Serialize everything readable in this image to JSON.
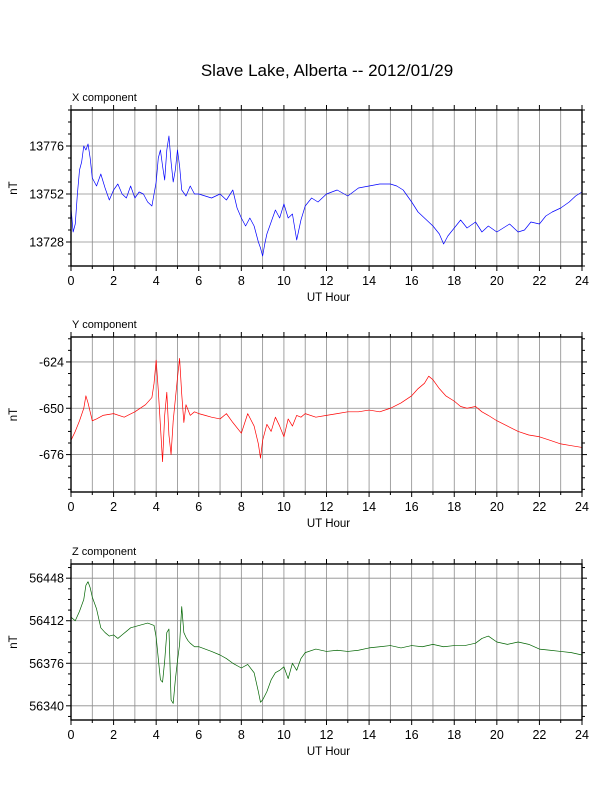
{
  "page": {
    "title": "Slave Lake, Alberta -- 2012/01/29"
  },
  "chart_data": [
    {
      "type": "line",
      "panel_label": "X component",
      "xlabel": "UT Hour",
      "ylabel": "nT",
      "xlim": [
        0,
        24
      ],
      "ylim": [
        13716,
        13794
      ],
      "xticks": [
        0,
        2,
        4,
        6,
        8,
        10,
        12,
        14,
        16,
        18,
        20,
        22,
        24
      ],
      "yticks": [
        13728,
        13752,
        13776
      ],
      "grid": true,
      "color": "#0000ff",
      "series": [
        {
          "x": [
            0,
            0.1,
            0.2,
            0.3,
            0.4,
            0.5,
            0.6,
            0.7,
            0.8,
            0.9,
            1.0,
            1.2,
            1.4,
            1.6,
            1.8,
            2.0,
            2.2,
            2.4,
            2.6,
            2.8,
            3.0,
            3.2,
            3.4,
            3.6,
            3.8,
            4.0,
            4.1,
            4.2,
            4.3,
            4.4,
            4.5,
            4.6,
            4.7,
            4.8,
            4.9,
            5.0,
            5.1,
            5.2,
            5.4,
            5.6,
            5.8,
            6.0,
            6.3,
            6.6,
            7.0,
            7.3,
            7.6,
            7.8,
            8.0,
            8.2,
            8.4,
            8.6,
            8.8,
            8.9,
            9.0,
            9.1,
            9.2,
            9.4,
            9.6,
            9.8,
            10.0,
            10.2,
            10.4,
            10.6,
            10.8,
            11.0,
            11.3,
            11.6,
            12.0,
            12.5,
            13.0,
            13.5,
            14.0,
            14.5,
            15.0,
            15.3,
            15.6,
            16.0,
            16.3,
            16.6,
            17.0,
            17.3,
            17.5,
            17.7,
            18.0,
            18.3,
            18.6,
            19.0,
            19.3,
            19.6,
            20.0,
            20.3,
            20.6,
            21.0,
            21.3,
            21.6,
            22.0,
            22.3,
            22.6,
            23.0,
            23.4,
            23.7,
            24.0
          ],
          "y": [
            13745,
            13733,
            13737,
            13752,
            13764,
            13768,
            13776,
            13774,
            13777,
            13770,
            13760,
            13756,
            13762,
            13755,
            13749,
            13754,
            13757,
            13752,
            13750,
            13756,
            13750,
            13753,
            13752,
            13748,
            13746,
            13758,
            13770,
            13774,
            13766,
            13759,
            13774,
            13781,
            13768,
            13758,
            13764,
            13774,
            13766,
            13754,
            13751,
            13756,
            13752,
            13752,
            13751,
            13750,
            13752,
            13749,
            13754,
            13745,
            13740,
            13736,
            13740,
            13736,
            13728,
            13725,
            13721,
            13727,
            13732,
            13738,
            13744,
            13740,
            13747,
            13740,
            13742,
            13729,
            13739,
            13746,
            13750,
            13748,
            13752,
            13754,
            13751,
            13755,
            13756,
            13757,
            13757,
            13756,
            13754,
            13748,
            13743,
            13740,
            13736,
            13732,
            13727,
            13731,
            13735,
            13739,
            13735,
            13738,
            13733,
            13736,
            13733,
            13735,
            13737,
            13733,
            13734,
            13738,
            13737,
            13741,
            13743,
            13745,
            13748,
            13751,
            13753
          ]
        }
      ]
    },
    {
      "type": "line",
      "panel_label": "Y component",
      "xlabel": "UT Hour",
      "ylabel": "nT",
      "xlim": [
        0,
        24
      ],
      "ylim": [
        -697,
        -610
      ],
      "xticks": [
        0,
        2,
        4,
        6,
        8,
        10,
        12,
        14,
        16,
        18,
        20,
        22,
        24
      ],
      "yticks": [
        -676,
        -650,
        -624
      ],
      "grid": true,
      "color": "#ff0000",
      "series": [
        {
          "x": [
            0,
            0.2,
            0.4,
            0.6,
            0.7,
            0.8,
            1.0,
            1.2,
            1.5,
            2.0,
            2.5,
            3.0,
            3.5,
            3.8,
            3.9,
            4.0,
            4.1,
            4.2,
            4.3,
            4.4,
            4.5,
            4.6,
            4.7,
            4.8,
            4.9,
            5.0,
            5.1,
            5.2,
            5.3,
            5.4,
            5.6,
            5.8,
            6.0,
            6.3,
            6.6,
            7.0,
            7.3,
            7.6,
            8.0,
            8.3,
            8.6,
            8.8,
            8.9,
            9.0,
            9.2,
            9.4,
            9.6,
            9.8,
            10.0,
            10.2,
            10.4,
            10.6,
            10.8,
            11.0,
            11.5,
            12.0,
            12.5,
            13.0,
            13.5,
            14.0,
            14.5,
            15.0,
            15.5,
            16.0,
            16.3,
            16.6,
            16.8,
            17.0,
            17.3,
            17.6,
            18.0,
            18.3,
            18.6,
            19.0,
            19.3,
            19.6,
            20.0,
            20.5,
            21.0,
            21.5,
            22.0,
            22.5,
            23.0,
            23.5,
            24.0
          ],
          "y": [
            -668,
            -663,
            -657,
            -650,
            -643,
            -647,
            -657,
            -656,
            -654,
            -653,
            -655,
            -652,
            -648,
            -644,
            -636,
            -623,
            -640,
            -660,
            -680,
            -654,
            -641,
            -665,
            -676,
            -657,
            -645,
            -633,
            -622,
            -642,
            -658,
            -648,
            -654,
            -652,
            -653,
            -654,
            -655,
            -656,
            -653,
            -658,
            -664,
            -653,
            -660,
            -670,
            -678,
            -668,
            -659,
            -663,
            -655,
            -660,
            -666,
            -656,
            -660,
            -654,
            -655,
            -653,
            -655,
            -654,
            -653,
            -652,
            -652,
            -651,
            -652,
            -650,
            -647,
            -643,
            -639,
            -636,
            -632,
            -634,
            -639,
            -643,
            -646,
            -649,
            -650,
            -649,
            -652,
            -654,
            -657,
            -660,
            -663,
            -665,
            -666,
            -668,
            -670,
            -671,
            -672
          ]
        }
      ]
    },
    {
      "type": "line",
      "panel_label": "Z component",
      "xlabel": "UT Hour",
      "ylabel": "nT",
      "xlim": [
        0,
        24
      ],
      "ylim": [
        56328,
        56460
      ],
      "xticks": [
        0,
        2,
        4,
        6,
        8,
        10,
        12,
        14,
        16,
        18,
        20,
        22,
        24
      ],
      "yticks": [
        56340,
        56376,
        56412,
        56448
      ],
      "grid": true,
      "color": "#006400",
      "series": [
        {
          "x": [
            0,
            0.2,
            0.4,
            0.6,
            0.7,
            0.8,
            0.9,
            1.0,
            1.2,
            1.4,
            1.6,
            1.8,
            2.0,
            2.2,
            2.4,
            2.8,
            3.2,
            3.6,
            3.9,
            4.0,
            4.1,
            4.2,
            4.3,
            4.4,
            4.5,
            4.6,
            4.7,
            4.8,
            4.9,
            5.0,
            5.1,
            5.2,
            5.3,
            5.4,
            5.5,
            5.6,
            5.8,
            6.0,
            6.3,
            6.6,
            7.0,
            7.3,
            7.6,
            8.0,
            8.3,
            8.6,
            8.8,
            8.9,
            9.0,
            9.2,
            9.4,
            9.6,
            9.8,
            10.0,
            10.2,
            10.4,
            10.6,
            10.8,
            11.0,
            11.5,
            12.0,
            12.5,
            13.0,
            13.5,
            14.0,
            14.5,
            15.0,
            15.5,
            16.0,
            16.5,
            17.0,
            17.5,
            18.0,
            18.5,
            19.0,
            19.3,
            19.6,
            20.0,
            20.5,
            21.0,
            21.5,
            22.0,
            22.5,
            23.0,
            23.5,
            24.0
          ],
          "y": [
            56415,
            56412,
            56420,
            56430,
            56442,
            56445,
            56440,
            56432,
            56422,
            56406,
            56402,
            56399,
            56400,
            56397,
            56400,
            56406,
            56408,
            56410,
            56408,
            56398,
            56380,
            56362,
            56360,
            56378,
            56402,
            56405,
            56345,
            56342,
            56362,
            56378,
            56392,
            56424,
            56402,
            56398,
            56395,
            56393,
            56390,
            56390,
            56388,
            56386,
            56383,
            56380,
            56376,
            56372,
            56375,
            56368,
            56352,
            56343,
            56345,
            56352,
            56362,
            56368,
            56370,
            56373,
            56363,
            56376,
            56370,
            56380,
            56385,
            56388,
            56386,
            56387,
            56386,
            56387,
            56389,
            56390,
            56391,
            56389,
            56391,
            56390,
            56392,
            56390,
            56391,
            56391,
            56393,
            56397,
            56399,
            56394,
            56392,
            56394,
            56392,
            56388,
            56387,
            56386,
            56385,
            56383
          ]
        }
      ]
    }
  ]
}
